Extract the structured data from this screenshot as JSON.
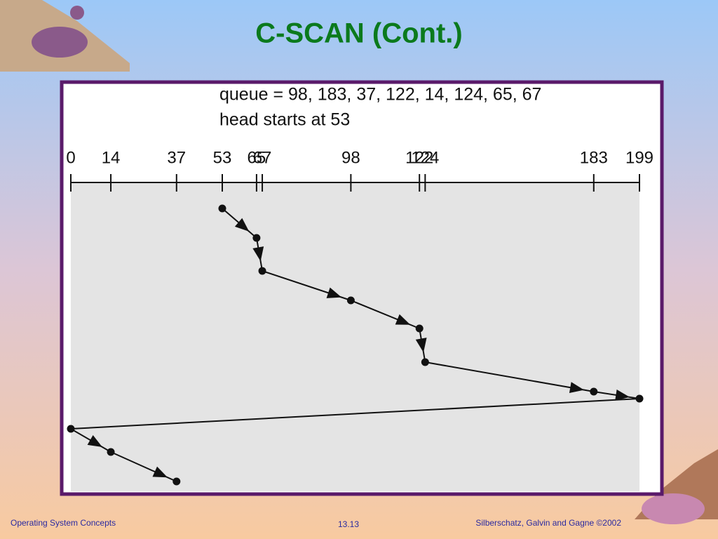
{
  "header": {
    "title": "C-SCAN (Cont.)"
  },
  "diagram": {
    "queue_text": "queue = 98, 183, 37, 122, 14, 124, 65, 67",
    "head_text": "head starts at 53",
    "ticks": [
      0,
      14,
      37,
      53,
      65,
      67,
      98,
      122,
      124,
      183,
      199
    ],
    "path": [
      53,
      65,
      67,
      98,
      122,
      124,
      183,
      199,
      0,
      14,
      37
    ]
  },
  "footer": {
    "left": "Operating System Concepts",
    "center": "13.13",
    "right": "Silberschatz, Galvin and  Gagne ©2002"
  }
}
